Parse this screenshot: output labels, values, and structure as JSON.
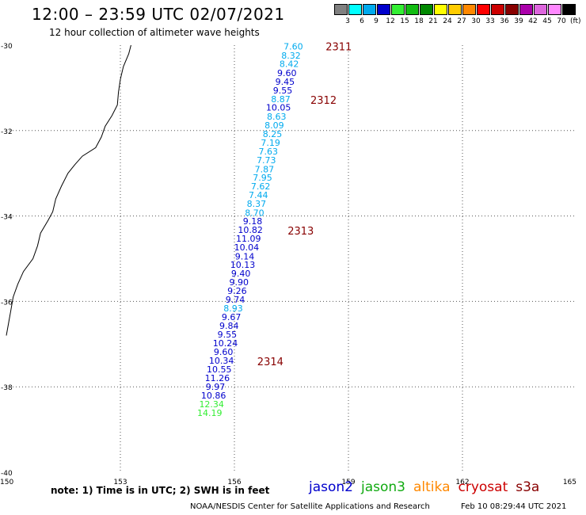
{
  "header": {
    "title": "12:00 – 23:59 UTC 02/07/2021",
    "subtitle": "12 hour collection of altimeter wave heights"
  },
  "legend": {
    "unit": "(ft)",
    "bins": [
      {
        "label": "3",
        "color": "#808080"
      },
      {
        "label": "6",
        "color": "#00ffff"
      },
      {
        "label": "9",
        "color": "#00aaee"
      },
      {
        "label": "12",
        "color": "#0000cc"
      },
      {
        "label": "15",
        "color": "#33ee33"
      },
      {
        "label": "18",
        "color": "#11bb11"
      },
      {
        "label": "21",
        "color": "#008800"
      },
      {
        "label": "24",
        "color": "#ffff00"
      },
      {
        "label": "27",
        "color": "#ffcc00"
      },
      {
        "label": "30",
        "color": "#ff8800"
      },
      {
        "label": "33",
        "color": "#ff0000"
      },
      {
        "label": "36",
        "color": "#cc0000"
      },
      {
        "label": "39",
        "color": "#880000"
      },
      {
        "label": "42",
        "color": "#aa00aa"
      },
      {
        "label": "45",
        "color": "#dd66dd"
      },
      {
        "label": "70",
        "color": "#ff88ff"
      },
      {
        "label": "",
        "color": "#000000"
      }
    ]
  },
  "axes": {
    "lat_labels": [
      "-30",
      "-32",
      "-34",
      "-36",
      "-38",
      "-40"
    ],
    "lon_labels": [
      "150",
      "153",
      "156",
      "159",
      "162",
      "165"
    ],
    "lat_values": [
      -30,
      -32,
      -34,
      -36,
      -38,
      -40
    ],
    "lon_values": [
      150,
      153,
      156,
      159,
      162,
      165
    ]
  },
  "track": [
    {
      "lat": -30.03,
      "lon": 157.55,
      "swh": "7.60",
      "color": "#00aaee"
    },
    {
      "lat": -30.24,
      "lon": 157.49,
      "swh": "8.32",
      "color": "#00aaee"
    },
    {
      "lat": -30.44,
      "lon": 157.44,
      "swh": "8.42",
      "color": "#00aaee"
    },
    {
      "lat": -30.65,
      "lon": 157.38,
      "swh": "9.60",
      "color": "#0000cc"
    },
    {
      "lat": -30.85,
      "lon": 157.33,
      "swh": "9.45",
      "color": "#0000cc"
    },
    {
      "lat": -31.06,
      "lon": 157.27,
      "swh": "9.55",
      "color": "#0000cc"
    },
    {
      "lat": -31.26,
      "lon": 157.22,
      "swh": "8.87",
      "color": "#00aaee"
    },
    {
      "lat": -31.46,
      "lon": 157.16,
      "swh": "10.05",
      "color": "#0000cc"
    },
    {
      "lat": -31.67,
      "lon": 157.11,
      "swh": "8.63",
      "color": "#00aaee"
    },
    {
      "lat": -31.87,
      "lon": 157.05,
      "swh": "8.09",
      "color": "#00aaee"
    },
    {
      "lat": -32.08,
      "lon": 157.0,
      "swh": "8.25",
      "color": "#00aaee"
    },
    {
      "lat": -32.28,
      "lon": 156.95,
      "swh": "7.19",
      "color": "#00aaee"
    },
    {
      "lat": -32.49,
      "lon": 156.89,
      "swh": "7.63",
      "color": "#00aaee"
    },
    {
      "lat": -32.69,
      "lon": 156.84,
      "swh": "7.73",
      "color": "#00aaee"
    },
    {
      "lat": -32.9,
      "lon": 156.79,
      "swh": "7.87",
      "color": "#00aaee"
    },
    {
      "lat": -33.1,
      "lon": 156.74,
      "swh": "7.95",
      "color": "#00aaee"
    },
    {
      "lat": -33.3,
      "lon": 156.69,
      "swh": "7.62",
      "color": "#00aaee"
    },
    {
      "lat": -33.51,
      "lon": 156.63,
      "swh": "7.44",
      "color": "#00aaee"
    },
    {
      "lat": -33.71,
      "lon": 156.58,
      "swh": "8.37",
      "color": "#00aaee"
    },
    {
      "lat": -33.92,
      "lon": 156.53,
      "swh": "8.70",
      "color": "#00aaee"
    },
    {
      "lat": -34.12,
      "lon": 156.48,
      "swh": "9.18",
      "color": "#0000cc"
    },
    {
      "lat": -34.32,
      "lon": 156.42,
      "swh": "10.82",
      "color": "#0000cc"
    },
    {
      "lat": -34.53,
      "lon": 156.37,
      "swh": "11.09",
      "color": "#0000cc"
    },
    {
      "lat": -34.73,
      "lon": 156.32,
      "swh": "10.04",
      "color": "#0000cc"
    },
    {
      "lat": -34.94,
      "lon": 156.27,
      "swh": "9.14",
      "color": "#0000cc"
    },
    {
      "lat": -35.14,
      "lon": 156.22,
      "swh": "10.13",
      "color": "#0000cc"
    },
    {
      "lat": -35.34,
      "lon": 156.17,
      "swh": "9.40",
      "color": "#0000cc"
    },
    {
      "lat": -35.55,
      "lon": 156.12,
      "swh": "9.90",
      "color": "#0000cc"
    },
    {
      "lat": -35.75,
      "lon": 156.07,
      "swh": "9.26",
      "color": "#0000cc"
    },
    {
      "lat": -35.96,
      "lon": 156.02,
      "swh": "9.74",
      "color": "#0000cc"
    },
    {
      "lat": -36.16,
      "lon": 155.97,
      "swh": "8.93",
      "color": "#00aaee"
    },
    {
      "lat": -36.36,
      "lon": 155.92,
      "swh": "9.67",
      "color": "#0000cc"
    },
    {
      "lat": -36.57,
      "lon": 155.86,
      "swh": "9.84",
      "color": "#0000cc"
    },
    {
      "lat": -36.77,
      "lon": 155.81,
      "swh": "9.55",
      "color": "#0000cc"
    },
    {
      "lat": -36.98,
      "lon": 155.76,
      "swh": "10.24",
      "color": "#0000cc"
    },
    {
      "lat": -37.18,
      "lon": 155.71,
      "swh": "9.60",
      "color": "#0000cc"
    },
    {
      "lat": -37.38,
      "lon": 155.66,
      "swh": "10.34",
      "color": "#0000cc"
    },
    {
      "lat": -37.59,
      "lon": 155.6,
      "swh": "10.55",
      "color": "#0000cc"
    },
    {
      "lat": -37.79,
      "lon": 155.55,
      "swh": "11.26",
      "color": "#0000cc"
    },
    {
      "lat": -38.0,
      "lon": 155.5,
      "swh": "9.97",
      "color": "#0000cc"
    },
    {
      "lat": -38.2,
      "lon": 155.45,
      "swh": "10.86",
      "color": "#0000cc"
    },
    {
      "lat": -38.4,
      "lon": 155.4,
      "swh": "12.34",
      "color": "#33ee33"
    },
    {
      "lat": -38.61,
      "lon": 155.35,
      "swh": "14.19",
      "color": "#33ee33"
    }
  ],
  "time_markers": [
    {
      "label": "2311",
      "lat": -30.03,
      "lon": 158.4
    },
    {
      "label": "2312",
      "lat": -31.28,
      "lon": 158.0
    },
    {
      "lat": -34.34,
      "lon": 157.4,
      "label": "2313"
    },
    {
      "lat": -37.4,
      "lon": 156.6,
      "label": "2314"
    }
  ],
  "marker_color": "#880000",
  "coastline": [
    [
      -30.0,
      153.28
    ],
    [
      -30.2,
      153.22
    ],
    [
      -30.5,
      153.08
    ],
    [
      -30.8,
      153.0
    ],
    [
      -31.1,
      152.95
    ],
    [
      -31.4,
      152.92
    ],
    [
      -31.65,
      152.78
    ],
    [
      -31.9,
      152.6
    ],
    [
      -32.15,
      152.5
    ],
    [
      -32.4,
      152.35
    ],
    [
      -32.6,
      152.0
    ],
    [
      -32.8,
      151.8
    ],
    [
      -33.0,
      151.62
    ],
    [
      -33.3,
      151.45
    ],
    [
      -33.6,
      151.3
    ],
    [
      -33.9,
      151.22
    ],
    [
      -34.1,
      151.1
    ],
    [
      -34.4,
      150.9
    ],
    [
      -34.7,
      150.82
    ],
    [
      -35.0,
      150.7
    ],
    [
      -35.3,
      150.45
    ],
    [
      -35.6,
      150.3
    ],
    [
      -35.9,
      150.18
    ],
    [
      -36.2,
      150.12
    ],
    [
      -36.5,
      150.06
    ],
    [
      -36.8,
      150.0
    ]
  ],
  "note": "note: 1) Time is in UTC; 2) SWH is in feet",
  "satellites": [
    {
      "name": "jason2",
      "color": "#0000cc"
    },
    {
      "name": "jason3",
      "color": "#11aa11"
    },
    {
      "name": "altika",
      "color": "#ff8800"
    },
    {
      "name": "cryosat",
      "color": "#cc0000"
    },
    {
      "name": "s3a",
      "color": "#880000"
    }
  ],
  "footer": {
    "credit": "NOAA/NESDIS Center for Satellite Applications and Research",
    "timestamp": "Feb 10 08:29:44 UTC 2021"
  }
}
